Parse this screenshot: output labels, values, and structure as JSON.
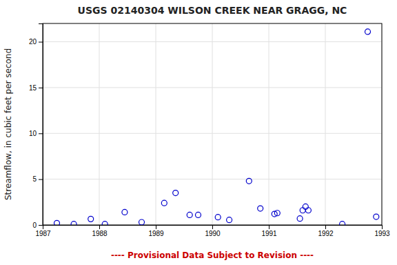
{
  "chart_data": {
    "type": "scatter",
    "title": "USGS 02140304 WILSON CREEK NEAR GRAGG, NC",
    "ylabel": "Streamflow, in cubic feet per second",
    "annotations": [
      {
        "text": "---- Provisional Data Subject to Revision ----",
        "color": "#cc0000"
      }
    ],
    "x": [
      1987.25,
      1987.55,
      1987.85,
      1988.1,
      1988.45,
      1988.75,
      1989.15,
      1989.35,
      1989.6,
      1989.75,
      1990.1,
      1990.3,
      1990.65,
      1990.85,
      1991.1,
      1991.15,
      1991.55,
      1991.6,
      1991.65,
      1991.7,
      1992.3,
      1992.75,
      1992.9
    ],
    "values": [
      0.2,
      0.1,
      0.65,
      0.1,
      1.4,
      0.3,
      2.4,
      3.5,
      1.1,
      1.1,
      0.85,
      0.55,
      4.8,
      1.8,
      1.2,
      1.3,
      0.7,
      1.6,
      2.0,
      1.6,
      0.1,
      21.1,
      0.9
    ],
    "color": "#0000CC",
    "marker": "circle-open",
    "xlim": [
      1987.0,
      1993.0
    ],
    "ylim": [
      0,
      22
    ],
    "xticks": [
      1987,
      1988,
      1989,
      1990,
      1991,
      1992,
      1993
    ],
    "yticks": [
      0,
      5,
      10,
      15,
      20
    ],
    "grid": true
  }
}
